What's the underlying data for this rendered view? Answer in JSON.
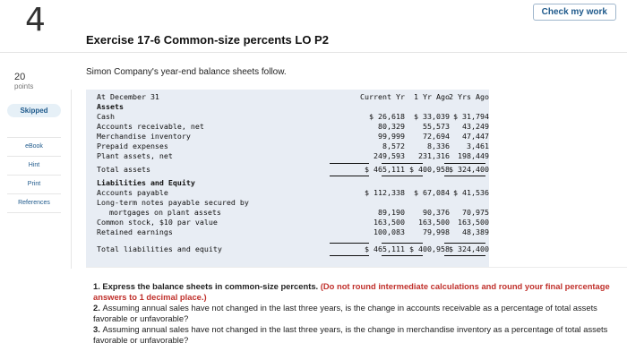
{
  "question_number": "4",
  "check_button": "Check my work",
  "points": {
    "value": "20",
    "label": "points"
  },
  "side": {
    "skipped": "Skipped",
    "links": [
      "eBook",
      "Hint",
      "Print",
      "References"
    ]
  },
  "exercise_title": "Exercise 17-6 Common-size percents LO P2",
  "intro": "Simon Company's year-end balance sheets follow.",
  "sheet": {
    "header": {
      "label": "At December 31",
      "c1": "Current Yr",
      "c2": "1 Yr Ago",
      "c3": "2 Yrs Ago"
    },
    "rows": [
      {
        "label": "Assets",
        "c1": "",
        "c2": "",
        "c3": ""
      },
      {
        "label": "Cash",
        "c1": "$ 26,618",
        "c2": "$ 33,039",
        "c3": "$ 31,794"
      },
      {
        "label": "Accounts receivable, net",
        "c1": "80,329",
        "c2": "55,573",
        "c3": "43,249"
      },
      {
        "label": "Merchandise inventory",
        "c1": "99,999",
        "c2": "72,694",
        "c3": "47,447"
      },
      {
        "label": "Prepaid expenses",
        "c1": "8,572",
        "c2": "8,336",
        "c3": "3,461"
      },
      {
        "label": "Plant assets, net",
        "c1": "249,593",
        "c2": "231,316",
        "c3": "198,449"
      },
      {
        "label": "Total assets",
        "c1": "$ 465,111",
        "c2": "$ 400,958",
        "c3": "$ 324,400"
      },
      {
        "label": "Liabilities and Equity",
        "c1": "",
        "c2": "",
        "c3": ""
      },
      {
        "label": "Accounts payable",
        "c1": "$ 112,338",
        "c2": "$ 67,084",
        "c3": "$ 41,536"
      },
      {
        "label": "Long-term notes payable secured by",
        "c1": "",
        "c2": "",
        "c3": ""
      },
      {
        "label": "mortgages on plant assets",
        "c1": "89,190",
        "c2": "90,376",
        "c3": "70,975"
      },
      {
        "label": "Common stock, $10 par value",
        "c1": "163,500",
        "c2": "163,500",
        "c3": "163,500"
      },
      {
        "label": "Retained earnings",
        "c1": "100,083",
        "c2": "79,998",
        "c3": "48,389"
      },
      {
        "label": "Total liabilities and equity",
        "c1": "$ 465,111",
        "c2": "$ 400,958",
        "c3": "$ 324,400"
      }
    ]
  },
  "questions": {
    "q1_prefix": "1. Express the balance sheets in common-size percents. ",
    "q1_note": "(Do not round intermediate calculations and round your final percentage answers to 1 decimal place.)",
    "q2_prefix": "2. ",
    "q2": "Assuming annual sales have not changed in the last three years, is the change in accounts receivable as a percentage of total assets favorable or unfavorable?",
    "q3_prefix": "3. ",
    "q3": "Assuming annual sales have not changed in the last three years, is the change in merchandise inventory as a percentage of total assets favorable or unfavorable?"
  }
}
